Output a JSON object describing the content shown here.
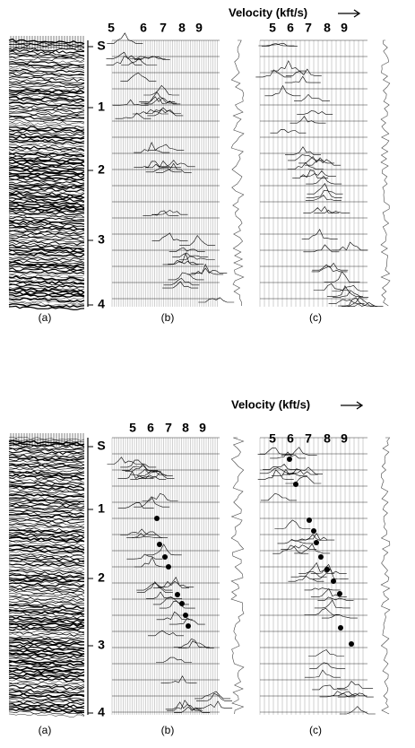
{
  "figures": [
    {
      "velocity_label": "Velocity (kft/s)",
      "b_ticks": [
        "5",
        "6",
        "7",
        "8",
        "9"
      ],
      "c_ticks": [
        "5",
        "6",
        "7",
        "8",
        "9"
      ],
      "time_labels": [
        "S",
        "1",
        "2",
        "3",
        "4"
      ],
      "panel_labels": [
        "(a)",
        "(b)",
        "(c)"
      ]
    },
    {
      "velocity_label": "Velocity (kft/s)",
      "b_ticks": [
        "5",
        "6",
        "7",
        "8",
        "9"
      ],
      "c_ticks": [
        "5",
        "6",
        "7",
        "8",
        "9"
      ],
      "time_labels": [
        "S",
        "1",
        "2",
        "3",
        "4"
      ],
      "panel_labels": [
        "(a)",
        "(b)",
        "(c)"
      ]
    }
  ]
}
